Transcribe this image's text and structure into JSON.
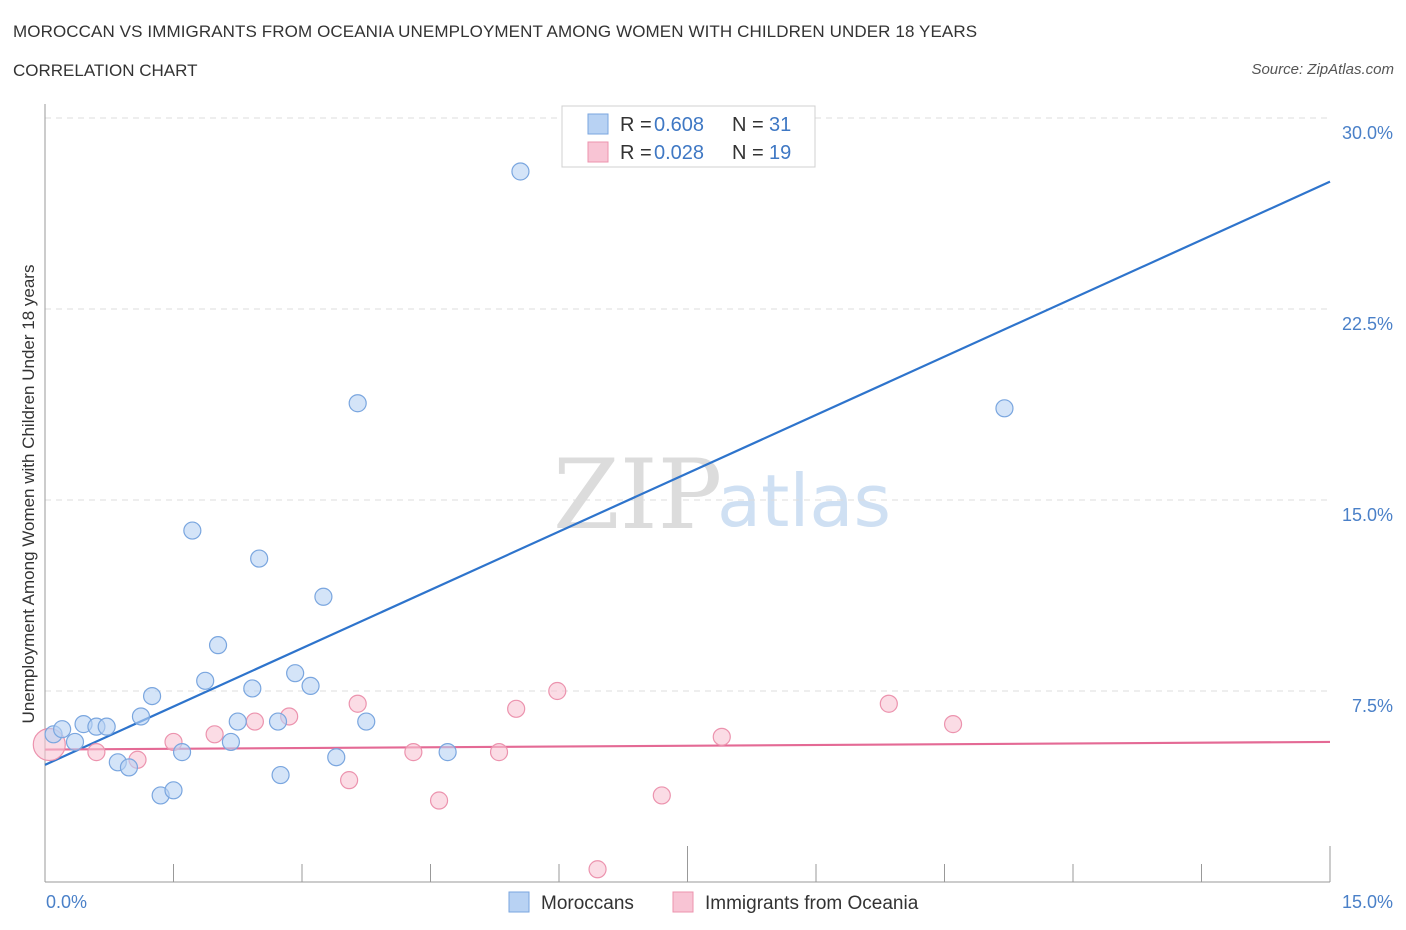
{
  "header": {
    "title": "MOROCCAN VS IMMIGRANTS FROM OCEANIA UNEMPLOYMENT AMONG WOMEN WITH CHILDREN UNDER 18 YEARS",
    "subtitle": "CORRELATION CHART",
    "source": "Source: ZipAtlas.com"
  },
  "watermark": {
    "zip": "ZIP",
    "atlas": "atlas"
  },
  "colors": {
    "blue_fill": "#b8d2f3",
    "blue_stroke": "#7aa6df",
    "blue_line": "#2e74cc",
    "pink_fill": "#f8c4d4",
    "pink_stroke": "#ec93ae",
    "pink_line": "#e46a95",
    "grid": "#dddddd",
    "axis": "#999999"
  },
  "legend": {
    "rows": [
      {
        "r_label": "R =",
        "r_value": "0.608",
        "n_label": "N =",
        "n_value": "31"
      },
      {
        "r_label": "R =",
        "r_value": "0.028",
        "n_label": "N =",
        "n_value": "19"
      }
    ]
  },
  "chart_data": {
    "type": "scatter",
    "title": "MOROCCAN VS IMMIGRANTS FROM OCEANIA UNEMPLOYMENT AMONG WOMEN WITH CHILDREN UNDER 18 YEARS",
    "xlabel": "",
    "ylabel": "Unemployment Among Women with Children Under 18 years",
    "xlim": [
      0,
      15
    ],
    "ylim": [
      0,
      30
    ],
    "x_tick_labels": [
      "0.0%",
      "15.0%"
    ],
    "y_ticks": [
      7.5,
      15.0,
      22.5,
      30.0
    ],
    "y_tick_labels": [
      "7.5%",
      "15.0%",
      "22.5%",
      "30.0%"
    ],
    "grid": true,
    "legend_position": "top-center",
    "series": [
      {
        "name": "Moroccans",
        "color": "blue",
        "trend": {
          "x": [
            0,
            15
          ],
          "y": [
            4.6,
            27.5
          ]
        },
        "points": [
          {
            "x": 0.1,
            "y": 5.8
          },
          {
            "x": 0.2,
            "y": 6.0
          },
          {
            "x": 0.35,
            "y": 5.5
          },
          {
            "x": 0.45,
            "y": 6.2
          },
          {
            "x": 0.6,
            "y": 6.1
          },
          {
            "x": 0.72,
            "y": 6.1
          },
          {
            "x": 0.85,
            "y": 4.7
          },
          {
            "x": 0.98,
            "y": 4.5
          },
          {
            "x": 1.12,
            "y": 6.5
          },
          {
            "x": 1.25,
            "y": 7.3
          },
          {
            "x": 1.35,
            "y": 3.4
          },
          {
            "x": 1.5,
            "y": 3.6
          },
          {
            "x": 1.6,
            "y": 5.1
          },
          {
            "x": 1.72,
            "y": 13.8
          },
          {
            "x": 1.87,
            "y": 7.9
          },
          {
            "x": 2.02,
            "y": 9.3
          },
          {
            "x": 2.17,
            "y": 5.5
          },
          {
            "x": 2.25,
            "y": 6.3
          },
          {
            "x": 2.42,
            "y": 7.6
          },
          {
            "x": 2.5,
            "y": 12.7
          },
          {
            "x": 2.72,
            "y": 6.3
          },
          {
            "x": 2.75,
            "y": 4.2
          },
          {
            "x": 2.92,
            "y": 8.2
          },
          {
            "x": 3.1,
            "y": 7.7
          },
          {
            "x": 3.25,
            "y": 11.2
          },
          {
            "x": 3.4,
            "y": 4.9
          },
          {
            "x": 3.65,
            "y": 18.8
          },
          {
            "x": 3.75,
            "y": 6.3
          },
          {
            "x": 4.7,
            "y": 5.1
          },
          {
            "x": 5.55,
            "y": 27.9
          },
          {
            "x": 11.2,
            "y": 18.6
          }
        ]
      },
      {
        "name": "Immigrants from Oceania",
        "color": "pink",
        "trend": {
          "x": [
            0,
            15
          ],
          "y": [
            5.2,
            5.5
          ]
        },
        "points": [
          {
            "x": 0.05,
            "y": 5.4
          },
          {
            "x": 0.6,
            "y": 5.1
          },
          {
            "x": 1.08,
            "y": 4.8
          },
          {
            "x": 1.5,
            "y": 5.5
          },
          {
            "x": 1.98,
            "y": 5.8
          },
          {
            "x": 2.45,
            "y": 6.3
          },
          {
            "x": 2.85,
            "y": 6.5
          },
          {
            "x": 3.55,
            "y": 4.0
          },
          {
            "x": 3.65,
            "y": 7.0
          },
          {
            "x": 4.3,
            "y": 5.1
          },
          {
            "x": 4.6,
            "y": 3.2
          },
          {
            "x": 5.3,
            "y": 5.1
          },
          {
            "x": 5.5,
            "y": 6.8
          },
          {
            "x": 5.98,
            "y": 7.5
          },
          {
            "x": 6.45,
            "y": 0.5
          },
          {
            "x": 7.2,
            "y": 3.4
          },
          {
            "x": 7.9,
            "y": 5.7
          },
          {
            "x": 9.85,
            "y": 7.0
          },
          {
            "x": 10.6,
            "y": 6.2
          }
        ]
      }
    ]
  }
}
